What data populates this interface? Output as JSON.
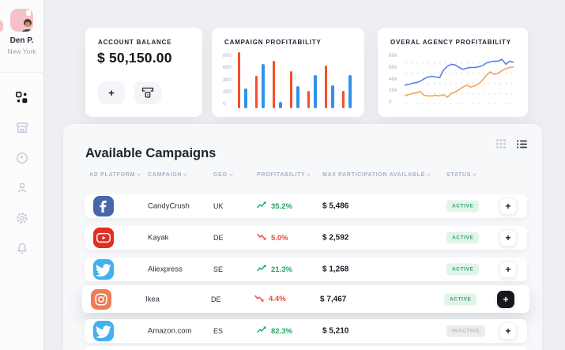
{
  "user": {
    "name": "Den P.",
    "location": "New York"
  },
  "sidebar": {
    "nav": [
      {
        "icon": "dashboard-icon",
        "active": true
      },
      {
        "icon": "store-icon",
        "active": false
      },
      {
        "icon": "clock-icon",
        "active": false
      },
      {
        "icon": "person-icon",
        "active": false
      },
      {
        "icon": "gear-icon",
        "active": false
      },
      {
        "icon": "bell-icon",
        "active": false
      }
    ]
  },
  "balance": {
    "title": "ACCOUNT BALANCE",
    "amount": "$ 50,150.00",
    "buttons": [
      {
        "icon": "plus-icon"
      },
      {
        "icon": "withdraw-icon"
      }
    ]
  },
  "chart_data": [
    {
      "type": "bar",
      "title": "CAMPAIGN PROFITABILITY",
      "yticks": [
        "800",
        "600",
        "400",
        "200",
        "0"
      ],
      "ylim": [
        0,
        800
      ],
      "grid": false,
      "series": [
        {
          "name": "red",
          "color": "#f4502a",
          "values": [
            840,
            480,
            710,
            550,
            260,
            640,
            260
          ]
        },
        {
          "name": "blue",
          "color": "#3092e8",
          "values": [
            290,
            660,
            90,
            330,
            500,
            340,
            500
          ]
        }
      ]
    },
    {
      "type": "line",
      "title": "OVERAL AGENCY PROFITABILITY",
      "yticks": [
        "80k",
        "60k",
        "40k",
        "20k",
        "0"
      ],
      "ylim": [
        0,
        80000
      ],
      "grid": "dotted",
      "series": [
        {
          "name": "blue",
          "color": "#5f80f0",
          "values": [
            34,
            35,
            37,
            38,
            40,
            44,
            47,
            48,
            47,
            46,
            58,
            64,
            67,
            66,
            62,
            59,
            61,
            62,
            62,
            63,
            65,
            69,
            71,
            72,
            72,
            75,
            67,
            72,
            70
          ],
          "unit": "k"
        },
        {
          "name": "orange",
          "color": "#f5a259",
          "values": [
            17,
            19,
            21,
            22,
            24,
            18,
            17,
            17,
            18,
            17,
            19,
            15,
            21,
            23,
            27,
            31,
            34,
            31,
            33,
            36,
            42,
            50,
            55,
            51,
            53,
            57,
            60,
            62,
            63
          ],
          "unit": "k"
        }
      ]
    }
  ],
  "campaigns": {
    "title": "Available Campaigns",
    "view_toggles": [
      {
        "icon": "grid-view-icon",
        "active": false
      },
      {
        "icon": "list-view-icon",
        "active": true
      }
    ],
    "columns": [
      "AD PLATFORM",
      "CAMPAIGN",
      "GEO",
      "PROFITABILITY",
      "MAX PARTICIPATION AVAILABLE",
      "STATUS"
    ],
    "rows": [
      {
        "platform": "facebook",
        "campaign": "CandyCrush",
        "geo": "UK",
        "trend": "up",
        "profitability": "35.2%",
        "max_participation": "$ 5,486",
        "status": "ACTIVE",
        "highlighted": false
      },
      {
        "platform": "youtube",
        "campaign": "Kayak",
        "geo": "DE",
        "trend": "down",
        "profitability": "5.0%",
        "max_participation": "$ 2,592",
        "status": "ACTIVE",
        "highlighted": false
      },
      {
        "platform": "twitter",
        "campaign": "Aliexpress",
        "geo": "SE",
        "trend": "up",
        "profitability": "21.3%",
        "max_participation": "$ 1,268",
        "status": "ACTIVE",
        "highlighted": false
      },
      {
        "platform": "instagram",
        "campaign": "Ikea",
        "geo": "DE",
        "trend": "down",
        "profitability": "4.4%",
        "max_participation": "$ 7,467",
        "status": "ACTIVE",
        "highlighted": true
      },
      {
        "platform": "twitter",
        "campaign": "Amazon.com",
        "geo": "ES",
        "trend": "up",
        "profitability": "82.3%",
        "max_participation": "$ 5,210",
        "status": "INACTIVE",
        "highlighted": false
      }
    ]
  },
  "colors": {
    "trend_up": "#21a566",
    "trend_down": "#f0443c",
    "status_active_bg": "#e2f4ea",
    "status_active_text": "#2ba471",
    "status_inactive_bg": "#ebecee",
    "status_inactive_text": "#b6bac3",
    "platforms": {
      "facebook": "#4867aa",
      "youtube": "#e02f24",
      "twitter": "#41b2ee",
      "instagram": "#ef7c55"
    }
  }
}
